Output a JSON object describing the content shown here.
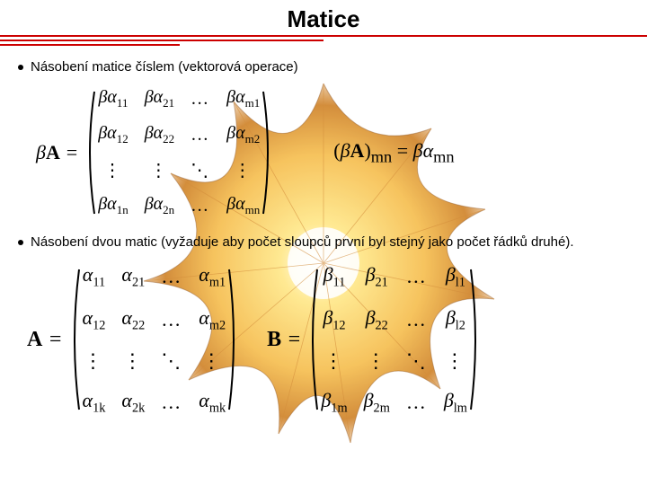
{
  "title": "Matice",
  "rules": {
    "color": "#cc0000",
    "widths": [
      720,
      360,
      200
    ]
  },
  "background": {
    "colors": {
      "core": "#ffffff",
      "light": "#ffe680",
      "mid": "#f5b942",
      "dark": "#cc7a1a",
      "deep": "#8a4a10"
    }
  },
  "bullet1": "Násobení matice číslem (vektorová operace)",
  "bullet2": "Násobení dvou matic (vyžaduje aby počet sloupců první byl stejný jako počet řádků druhé).",
  "eq1": {
    "lhs": "βA =",
    "rows": 4,
    "cols": 4,
    "cells": [
      [
        "βα",
        "11",
        "βα",
        "21",
        "…",
        "",
        "βα",
        "m1"
      ],
      [
        "βα",
        "12",
        "βα",
        "22",
        "…",
        "",
        "βα",
        "m2"
      ],
      [
        "⋮",
        "",
        "⋮",
        "",
        "⋱",
        "",
        "⋮",
        ""
      ],
      [
        "βα",
        "1n",
        "βα",
        "2n",
        "…",
        "",
        "βα",
        "mn"
      ]
    ],
    "rhs": "(βA)ₘₙ = βαₘₙ",
    "rhs_main": "(βA)",
    "rhs_sub1": "mn",
    "rhs_eq": " = ",
    "rhs_r": "βα",
    "rhs_sub2": "mn"
  },
  "eq2": {
    "A_lhs": "A =",
    "B_lhs": "B =",
    "A_cells": [
      [
        "α",
        "11",
        "α",
        "21",
        "…",
        "",
        "α",
        "m1"
      ],
      [
        "α",
        "12",
        "α",
        "22",
        "…",
        "",
        "α",
        "m2"
      ],
      [
        "⋮",
        "",
        "⋮",
        "",
        "⋱",
        "",
        "⋮",
        ""
      ],
      [
        "α",
        "1k",
        "α",
        "2k",
        "…",
        "",
        "α",
        "mk"
      ]
    ],
    "B_cells": [
      [
        "β",
        "11",
        "β",
        "21",
        "…",
        "",
        "β",
        "l1"
      ],
      [
        "β",
        "12",
        "β",
        "22",
        "…",
        "",
        "β",
        "l2"
      ],
      [
        "⋮",
        "",
        "⋮",
        "",
        "⋱",
        "",
        "⋮",
        ""
      ],
      [
        "β",
        "1m",
        "β",
        "2m",
        "…",
        "",
        "β",
        "lm"
      ]
    ]
  },
  "matrix_style": {
    "cell_fontsize": 20,
    "row_gap": 14,
    "col_gap": 18,
    "paren_stroke": "#000000",
    "paren_width": 2
  }
}
